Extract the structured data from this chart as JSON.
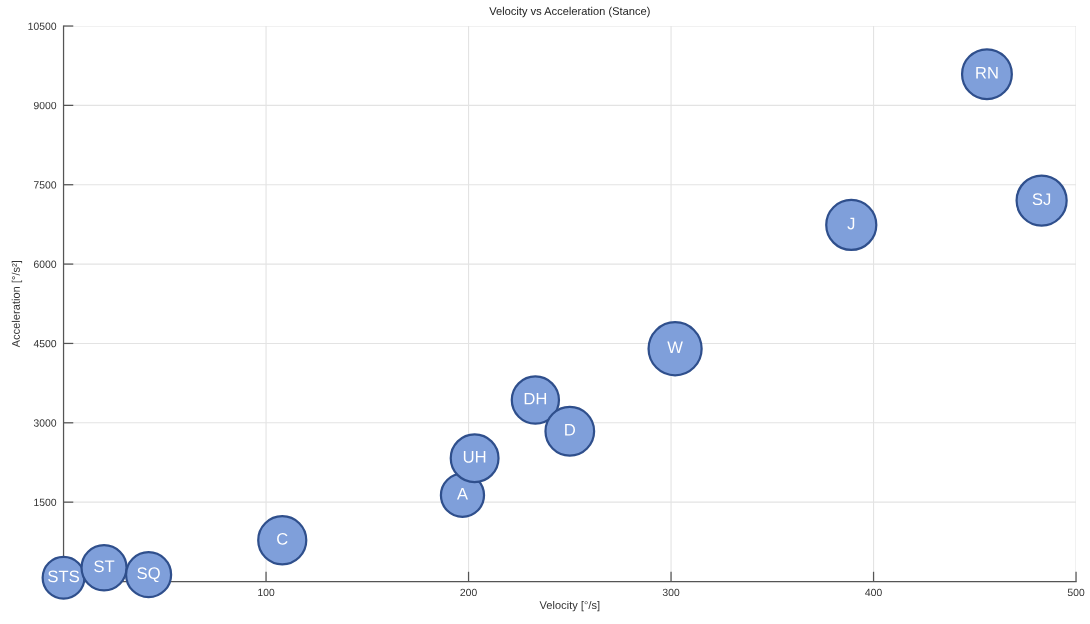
{
  "chart_data": {
    "type": "bubble",
    "title": "Velocity vs Acceleration (Stance)",
    "xlabel": "Velocity [°/s]",
    "ylabel": "Acceleration [°/s²]",
    "x": [
      0,
      20,
      42,
      108,
      197,
      203,
      233,
      250,
      302,
      389,
      456,
      483
    ],
    "values": [
      70,
      260,
      130,
      780,
      1630,
      2330,
      3430,
      2840,
      4400,
      6740,
      9590,
      7200
    ],
    "sizes": [
      0.62,
      0.72,
      0.72,
      0.82,
      0.66,
      0.81,
      0.79,
      0.84,
      1,
      0.89,
      0.88,
      0.89
    ],
    "color": "#7f9fda",
    "marker": "circle",
    "xlim": [
      0,
      500
    ],
    "xticks": [
      100,
      200,
      300,
      400,
      500
    ],
    "ylim": [
      0,
      10500
    ],
    "yticks": [
      1500,
      3000,
      4500,
      6000,
      7500,
      9000,
      10500
    ],
    "grid": true,
    "annotations": [
      {
        "text": "STS",
        "x": 0,
        "y": 70
      },
      {
        "text": "ST",
        "x": 20,
        "y": 260
      },
      {
        "text": "SQ",
        "x": 42,
        "y": 130
      },
      {
        "text": "C",
        "x": 108,
        "y": 780
      },
      {
        "text": "A",
        "x": 197,
        "y": 1630
      },
      {
        "text": "UH",
        "x": 203,
        "y": 2330
      },
      {
        "text": "DH",
        "x": 233,
        "y": 3430
      },
      {
        "text": "D",
        "x": 250,
        "y": 2840
      },
      {
        "text": "W",
        "x": 302,
        "y": 4400
      },
      {
        "text": "J",
        "x": 389,
        "y": 6740
      },
      {
        "text": "RN",
        "x": 456,
        "y": 9590
      },
      {
        "text": "SJ",
        "x": 483,
        "y": 7200
      }
    ]
  }
}
